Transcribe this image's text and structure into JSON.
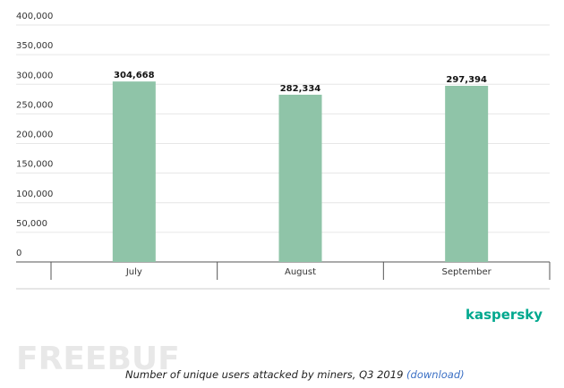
{
  "chart_data": {
    "type": "bar",
    "categories": [
      "July",
      "August",
      "September"
    ],
    "values": [
      304668,
      282334,
      297394
    ],
    "value_labels": [
      "304,668",
      "282,334",
      "297,394"
    ],
    "color": "#8fc4a8",
    "ylim": [
      0,
      400000
    ],
    "yticks": [
      0,
      {
        "value": 50000,
        "label": "50,000"
      },
      {
        "value": 100000,
        "label": "100,000"
      },
      {
        "value": 150000,
        "label": "150,000"
      },
      {
        "value": 200000,
        "label": "200,000"
      },
      {
        "value": 250000,
        "label": "250,000"
      },
      {
        "value": 300000,
        "label": "300,000"
      },
      {
        "value": 350000,
        "label": "350,000"
      },
      {
        "value": 400000,
        "label": "400,000"
      }
    ],
    "grid": true,
    "brand": "kaspersky",
    "watermark": "FREEBUF",
    "caption": "Number of unique users attacked by miners, Q3 2019",
    "caption_link": "(download)"
  }
}
